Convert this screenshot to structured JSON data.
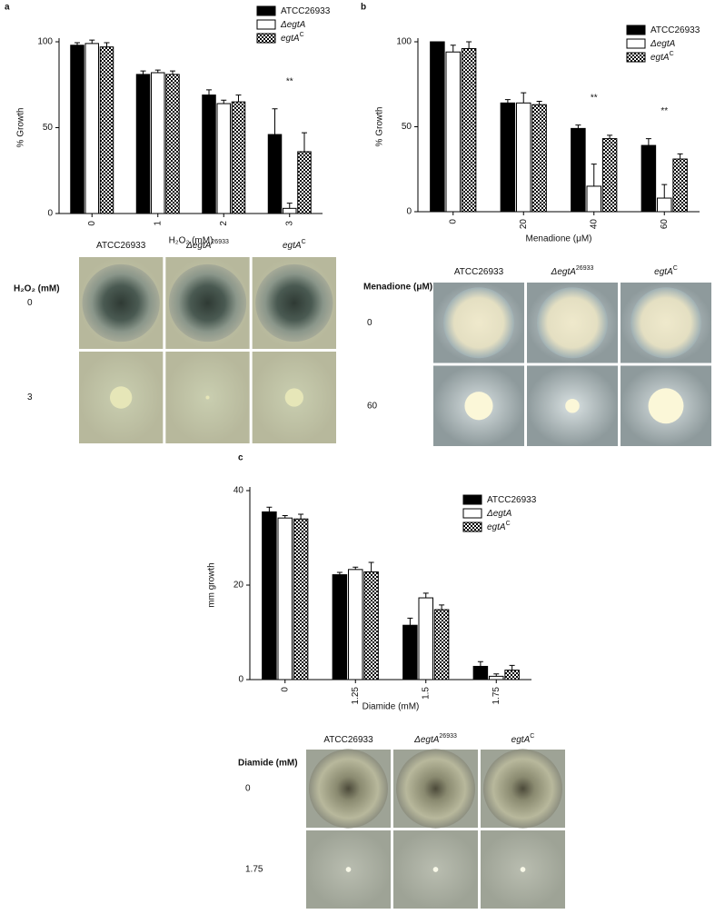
{
  "chart_data": [
    {
      "type": "bar",
      "panel_label": "a",
      "xlabel": "H₂O₂ (mM)",
      "ylabel": "% Growth",
      "categories": [
        "0",
        "1",
        "2",
        "3"
      ],
      "ylim": [
        0,
        100
      ],
      "yticks": [
        0,
        50,
        100
      ],
      "series": [
        {
          "name": "ATCC26933",
          "color": "#000000",
          "fill_style": "solid",
          "values": [
            98,
            81,
            69,
            46
          ],
          "errors": [
            1.5,
            2,
            3,
            15
          ]
        },
        {
          "name": "ΔegtA",
          "color": "#ffffff",
          "fill_style": "solid",
          "values": [
            99,
            82,
            64,
            3
          ],
          "errors": [
            2,
            1.5,
            2,
            3
          ]
        },
        {
          "name": "egtA",
          "sup": "C",
          "color": "#000000",
          "fill_style": "checkered",
          "values": [
            97,
            81,
            65,
            36
          ],
          "errors": [
            2.5,
            2,
            4,
            11
          ]
        }
      ],
      "annotations": [
        {
          "text": "**",
          "category": "3"
        }
      ]
    },
    {
      "type": "bar",
      "panel_label": "b",
      "xlabel": "Menadione (μM)",
      "ylabel": "% Growth",
      "categories": [
        "0",
        "20",
        "40",
        "60"
      ],
      "ylim": [
        0,
        100
      ],
      "yticks": [
        0,
        50,
        100
      ],
      "series": [
        {
          "name": "ATCC26933",
          "color": "#000000",
          "fill_style": "solid",
          "values": [
            100,
            64,
            49,
            39
          ],
          "errors": [
            0,
            2,
            2,
            4
          ]
        },
        {
          "name": "ΔegtA",
          "color": "#ffffff",
          "fill_style": "solid",
          "values": [
            94,
            64,
            15,
            8
          ],
          "errors": [
            4,
            6,
            13,
            8
          ]
        },
        {
          "name": "egtA",
          "sup": "C",
          "color": "#000000",
          "fill_style": "checkered",
          "values": [
            96,
            63,
            43,
            31
          ],
          "errors": [
            4,
            2,
            2,
            3
          ]
        }
      ],
      "annotations": [
        {
          "text": "**",
          "category": "40"
        },
        {
          "text": "**",
          "category": "60"
        }
      ]
    },
    {
      "type": "bar",
      "panel_label": "c",
      "xlabel": "Diamide (mM)",
      "ylabel": "mm growth",
      "categories": [
        "0",
        "1.25",
        "1.5",
        "1.75"
      ],
      "ylim": [
        0,
        40
      ],
      "yticks": [
        0,
        20,
        40
      ],
      "series": [
        {
          "name": "ATCC26933",
          "color": "#000000",
          "fill_style": "solid",
          "values": [
            35.5,
            22.2,
            11.5,
            2.8
          ],
          "errors": [
            1,
            0.5,
            1.5,
            1
          ]
        },
        {
          "name": "ΔegtA",
          "color": "#ffffff",
          "fill_style": "solid",
          "values": [
            34.2,
            23.3,
            17.3,
            0.7
          ],
          "errors": [
            0.5,
            0.5,
            1,
            0.5
          ]
        },
        {
          "name": "egtA",
          "sup": "C",
          "color": "#000000",
          "fill_style": "checkered",
          "values": [
            34,
            22.8,
            14.8,
            2
          ],
          "errors": [
            1,
            2,
            1,
            1
          ]
        }
      ],
      "annotations": []
    }
  ],
  "photo_panels": [
    {
      "row_title": "H₂O₂ (mM)",
      "columns": [
        {
          "text": "ATCC26933"
        },
        {
          "text": "ΔegtA",
          "sup": "26933"
        },
        {
          "text": "egtA",
          "sup": "C"
        }
      ],
      "rows": [
        "0",
        "3"
      ]
    },
    {
      "row_title": "Menadione (μM)",
      "columns": [
        {
          "text": "ATCC26933"
        },
        {
          "text": "ΔegtA",
          "sup": "26933"
        },
        {
          "text": "egtA",
          "sup": "C"
        }
      ],
      "rows": [
        "0",
        "60"
      ]
    },
    {
      "row_title": "Diamide (mM)",
      "columns": [
        {
          "text": "ATCC26933"
        },
        {
          "text": "ΔegtA",
          "sup": "26933"
        },
        {
          "text": "egtA",
          "sup": "C"
        }
      ],
      "rows": [
        "0",
        "1.75"
      ]
    }
  ]
}
